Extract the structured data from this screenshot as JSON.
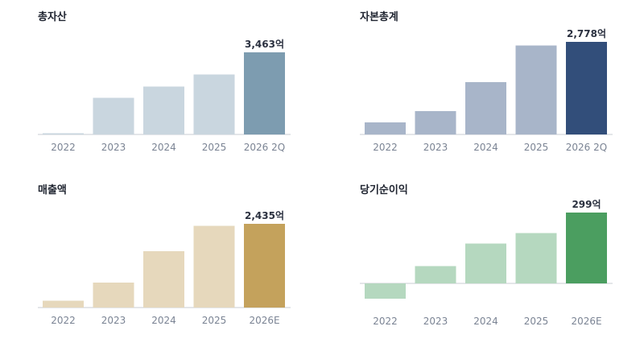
{
  "chart_data": [
    {
      "type": "bar",
      "title": "총자산",
      "categories": [
        "2022",
        "2023",
        "2024",
        "2025",
        "2026 2Q"
      ],
      "values": [
        20,
        1545,
        2025,
        2530,
        3463
      ],
      "data_labels": [
        "",
        "",
        "",
        "",
        "3,463억"
      ],
      "unit": "억",
      "ylim": [
        0,
        3463
      ],
      "colors": [
        "#c9d6df",
        "#c9d6df",
        "#c9d6df",
        "#c9d6df",
        "#7d9cb0"
      ],
      "grid": false,
      "legend": "none"
    },
    {
      "type": "bar",
      "title": "자본총계",
      "categories": [
        "2022",
        "2023",
        "2024",
        "2025",
        "2026 2Q"
      ],
      "values": [
        360,
        700,
        1575,
        2670,
        2778
      ],
      "data_labels": [
        "",
        "",
        "",
        "",
        "2,778억"
      ],
      "unit": "억",
      "ylim": [
        0,
        2778
      ],
      "colors": [
        "#a8b5c9",
        "#a8b5c9",
        "#a8b5c9",
        "#a8b5c9",
        "#324e7a"
      ],
      "grid": false,
      "legend": "none"
    },
    {
      "type": "bar",
      "title": "매출액",
      "categories": [
        "2022",
        "2023",
        "2024",
        "2025",
        "2026E"
      ],
      "values": [
        200,
        730,
        1640,
        2375,
        2435
      ],
      "data_labels": [
        "",
        "",
        "",
        "",
        "2,435억"
      ],
      "unit": "억",
      "ylim": [
        0,
        2435
      ],
      "colors": [
        "#e6d8bc",
        "#e6d8bc",
        "#e6d8bc",
        "#e6d8bc",
        "#c4a25c"
      ],
      "grid": false,
      "legend": "none"
    },
    {
      "type": "bar",
      "title": "당기순이익",
      "categories": [
        "2022",
        "2023",
        "2024",
        "2025",
        "2026E"
      ],
      "values": [
        -65,
        73,
        168,
        213,
        299
      ],
      "data_labels": [
        "",
        "",
        "",
        "",
        "299억"
      ],
      "unit": "억",
      "ylim": [
        -65,
        299
      ],
      "colors": [
        "#b5d8bf",
        "#b5d8bf",
        "#b5d8bf",
        "#b5d8bf",
        "#4b9e60"
      ],
      "grid": false,
      "legend": "none"
    }
  ]
}
